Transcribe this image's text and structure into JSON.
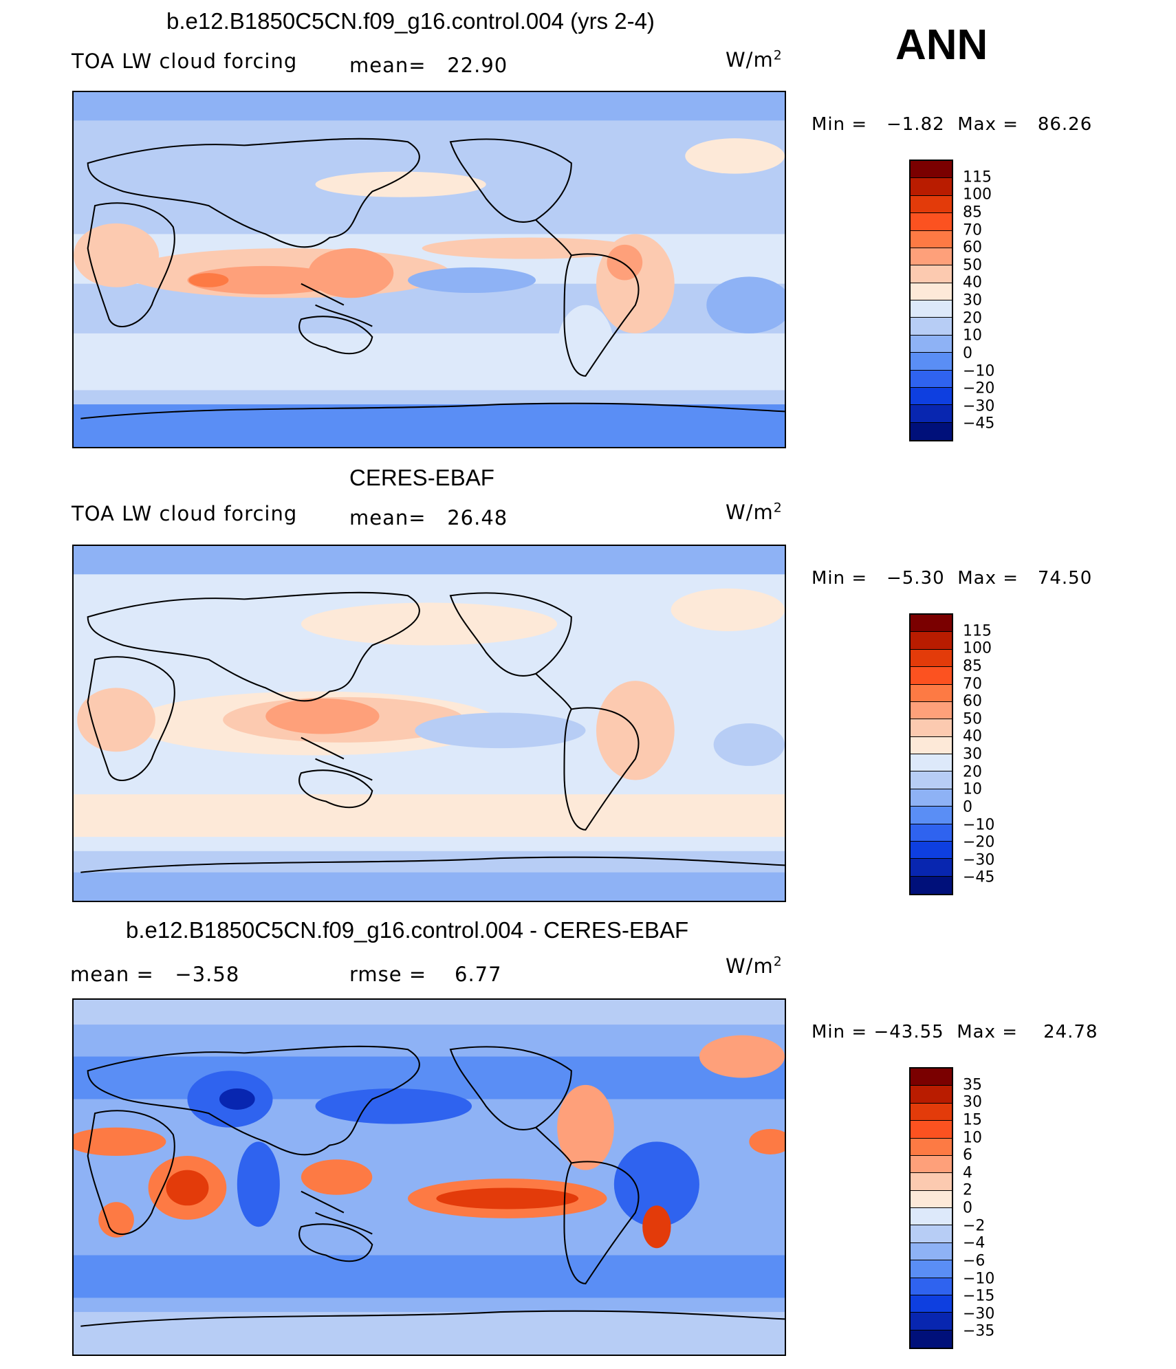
{
  "season": "ANN",
  "panels": [
    {
      "id": "model",
      "title": "b.e12.B1850C5CN.f09_g16.control.004 (yrs 2-4)",
      "left_label": "TOA LW cloud forcing",
      "center_label": "mean=",
      "center_value": "22.90",
      "units": "W/m",
      "units_sup": "2",
      "min_label": "Min =",
      "min_value": "−1.82",
      "max_label": "Max =",
      "max_value": "86.26"
    },
    {
      "id": "obs",
      "title": "CERES-EBAF",
      "left_label": "TOA LW cloud forcing",
      "center_label": "mean=",
      "center_value": "26.48",
      "units": "W/m",
      "units_sup": "2",
      "min_label": "Min =",
      "min_value": "−5.30",
      "max_label": "Max =",
      "max_value": "74.50"
    },
    {
      "id": "diff",
      "title": "b.e12.B1850C5CN.f09_g16.control.004 - CERES-EBAF",
      "left_label": "mean =",
      "left_value": "−3.58",
      "center_label": "rmse =",
      "center_value": "6.77",
      "units": "W/m",
      "units_sup": "2",
      "min_label": "Min =",
      "min_value": "−43.55",
      "max_label": "Max =",
      "max_value": "24.78"
    }
  ],
  "colorbars": {
    "field": {
      "labels": [
        "115",
        "100",
        "85",
        "70",
        "60",
        "50",
        "40",
        "30",
        "20",
        "10",
        "0",
        "−10",
        "−20",
        "−30",
        "−45"
      ],
      "colors": [
        "#7a0000",
        "#b91c00",
        "#e33b0a",
        "#fc5220",
        "#fd7a44",
        "#fea07a",
        "#fccab0",
        "#fde9d8",
        "#dde9fa",
        "#b7cdf5",
        "#8eb2f5",
        "#5a8ef5",
        "#2f63ef",
        "#0e3fe0",
        "#0826b0",
        "#00107a"
      ]
    },
    "diff": {
      "labels": [
        "35",
        "30",
        "15",
        "10",
        "6",
        "4",
        "2",
        "0",
        "−2",
        "−4",
        "−6",
        "−10",
        "−15",
        "−30",
        "−35"
      ],
      "colors": [
        "#7a0000",
        "#b91c00",
        "#e33b0a",
        "#fc5220",
        "#fd7a44",
        "#fea07a",
        "#fccab0",
        "#fde9d8",
        "#dde9fa",
        "#b7cdf5",
        "#8eb2f5",
        "#5a8ef5",
        "#2f63ef",
        "#0e3fe0",
        "#0826b0",
        "#00107a"
      ]
    }
  }
}
